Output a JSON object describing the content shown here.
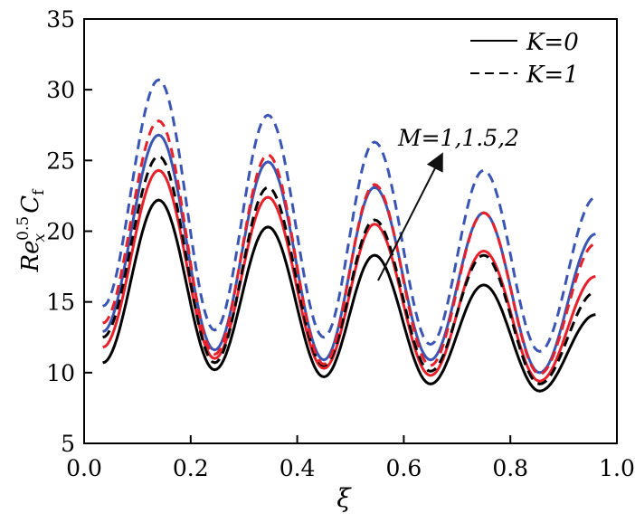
{
  "chart_data": {
    "type": "line",
    "title": "",
    "xlabel": "ξ",
    "ylabel": "Re_x^0.5 C_f",
    "ylabel_parts": {
      "base": "Re",
      "sub": "x",
      "sup": "0.5",
      "c": "C",
      "csub": "f"
    },
    "xlim": [
      0,
      1
    ],
    "ylim": [
      5,
      35
    ],
    "xticks": [
      "0.0",
      "0.2",
      "0.4",
      "0.6",
      "0.8",
      "1.0"
    ],
    "yticks": [
      "5",
      "10",
      "15",
      "20",
      "25",
      "30",
      "35"
    ],
    "grid": false,
    "legend_position": "top-right",
    "legend": [
      {
        "label": "K=0",
        "style": "solid",
        "color": "#000000"
      },
      {
        "label": "K=1",
        "style": "dashed",
        "color": "#000000"
      }
    ],
    "annotation": {
      "text": "M=1,1.5,2",
      "arrow": "increasing M"
    },
    "x": [
      0.035,
      0.14,
      0.245,
      0.345,
      0.45,
      0.545,
      0.65,
      0.75,
      0.855,
      0.96
    ],
    "series": [
      {
        "K": 0,
        "M": 1,
        "color": "#000000",
        "style": "solid",
        "values": [
          10.7,
          22.2,
          10.2,
          20.3,
          9.7,
          18.3,
          9.2,
          16.2,
          8.7,
          14.1
        ]
      },
      {
        "K": 0,
        "M": 1.5,
        "color": "#e8202a",
        "style": "solid",
        "values": [
          11.8,
          24.3,
          11.0,
          22.4,
          10.3,
          20.5,
          9.8,
          18.6,
          9.4,
          16.8
        ]
      },
      {
        "K": 0,
        "M": 2,
        "color": "#3a55b4",
        "style": "solid",
        "values": [
          12.9,
          26.8,
          11.6,
          24.9,
          10.9,
          23.1,
          10.9,
          21.3,
          10.0,
          19.8
        ]
      },
      {
        "K": 1,
        "M": 1,
        "color": "#000000",
        "style": "dashed",
        "values": [
          12.5,
          25.3,
          10.7,
          23.1,
          10.5,
          20.8,
          10.1,
          18.3,
          9.2,
          15.7
        ]
      },
      {
        "K": 1,
        "M": 1.5,
        "color": "#e8202a",
        "style": "dashed",
        "values": [
          13.5,
          27.8,
          11.3,
          25.4,
          10.6,
          23.3,
          10.5,
          21.3,
          9.9,
          19.1
        ]
      },
      {
        "K": 1,
        "M": 2,
        "color": "#3a55b4",
        "style": "dashed",
        "values": [
          14.7,
          30.7,
          13.0,
          28.2,
          12.5,
          26.3,
          12.0,
          24.3,
          11.5,
          22.4
        ]
      }
    ]
  }
}
